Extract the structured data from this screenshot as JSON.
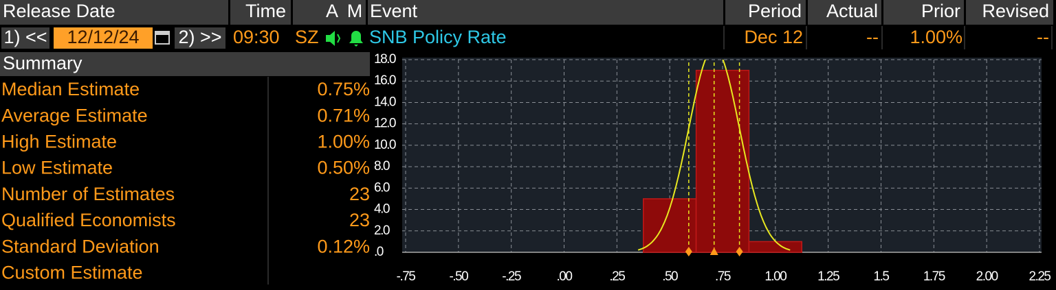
{
  "header": {
    "columns": [
      "Release Date",
      "Time",
      "A",
      "M",
      "Event",
      "Period",
      "Actual",
      "Prior",
      "Revised"
    ]
  },
  "row": {
    "prev_button": "1) <<",
    "date": "12/12/24",
    "next_button": "2) >>",
    "time": "09:30",
    "country": "SZ",
    "event": "SNB Policy Rate",
    "period": "Dec 12",
    "actual": "--",
    "prior": "1.00%",
    "revised": "--"
  },
  "summary": {
    "title": "Summary",
    "rows": [
      [
        "Median Estimate",
        "0.75%"
      ],
      [
        "Average Estimate",
        "0.71%"
      ],
      [
        "High Estimate",
        "1.00%"
      ],
      [
        "Low Estimate",
        "0.50%"
      ],
      [
        "Number of Estimates",
        "23"
      ],
      [
        "Qualified Economists",
        "23"
      ],
      [
        "Standard Deviation",
        "0.12%"
      ],
      [
        "Custom Estimate"
      ]
    ]
  },
  "chart_data": {
    "type": "histogram",
    "bins": [
      0.375,
      0.625,
      0.875,
      1.125
    ],
    "values": [
      5,
      17,
      1
    ],
    "color": "#8e0a0a",
    "mean": 0.71,
    "sd": 0.12,
    "curve_color": "#e8e820",
    "marker_color": "#ff9a1a",
    "xlim": [
      -0.75,
      2.25
    ],
    "xticks": [
      {
        "value": -0.75,
        "label": "-.75"
      },
      {
        "value": -0.5,
        "label": "-.50"
      },
      {
        "value": -0.25,
        "label": "-.25"
      },
      {
        "value": 0,
        "label": ".00"
      },
      {
        "value": 0.25,
        "label": ".25"
      },
      {
        "value": 0.5,
        "label": ".50"
      },
      {
        "value": 0.75,
        "label": ".75"
      },
      {
        "value": 1,
        "label": "1.00"
      },
      1.25,
      1.5,
      1.75,
      {
        "value": 2,
        "label": "2.00"
      },
      2.25
    ],
    "ylim": [
      0,
      18
    ],
    "yticks": [
      {
        "value": 0,
        "label": ".0"
      },
      {
        "value": 2,
        "label": "2.0"
      },
      {
        "value": 4,
        "label": "4.0"
      },
      {
        "value": 6,
        "label": "6.0"
      },
      {
        "value": 8,
        "label": "8.0"
      },
      {
        "value": 10,
        "label": "10.0"
      },
      {
        "value": 12,
        "label": "12.0"
      },
      {
        "value": 14,
        "label": "14.0"
      },
      {
        "value": 16,
        "label": "16.0"
      },
      {
        "value": 18,
        "label": "18.0"
      }
    ],
    "grid": true
  }
}
